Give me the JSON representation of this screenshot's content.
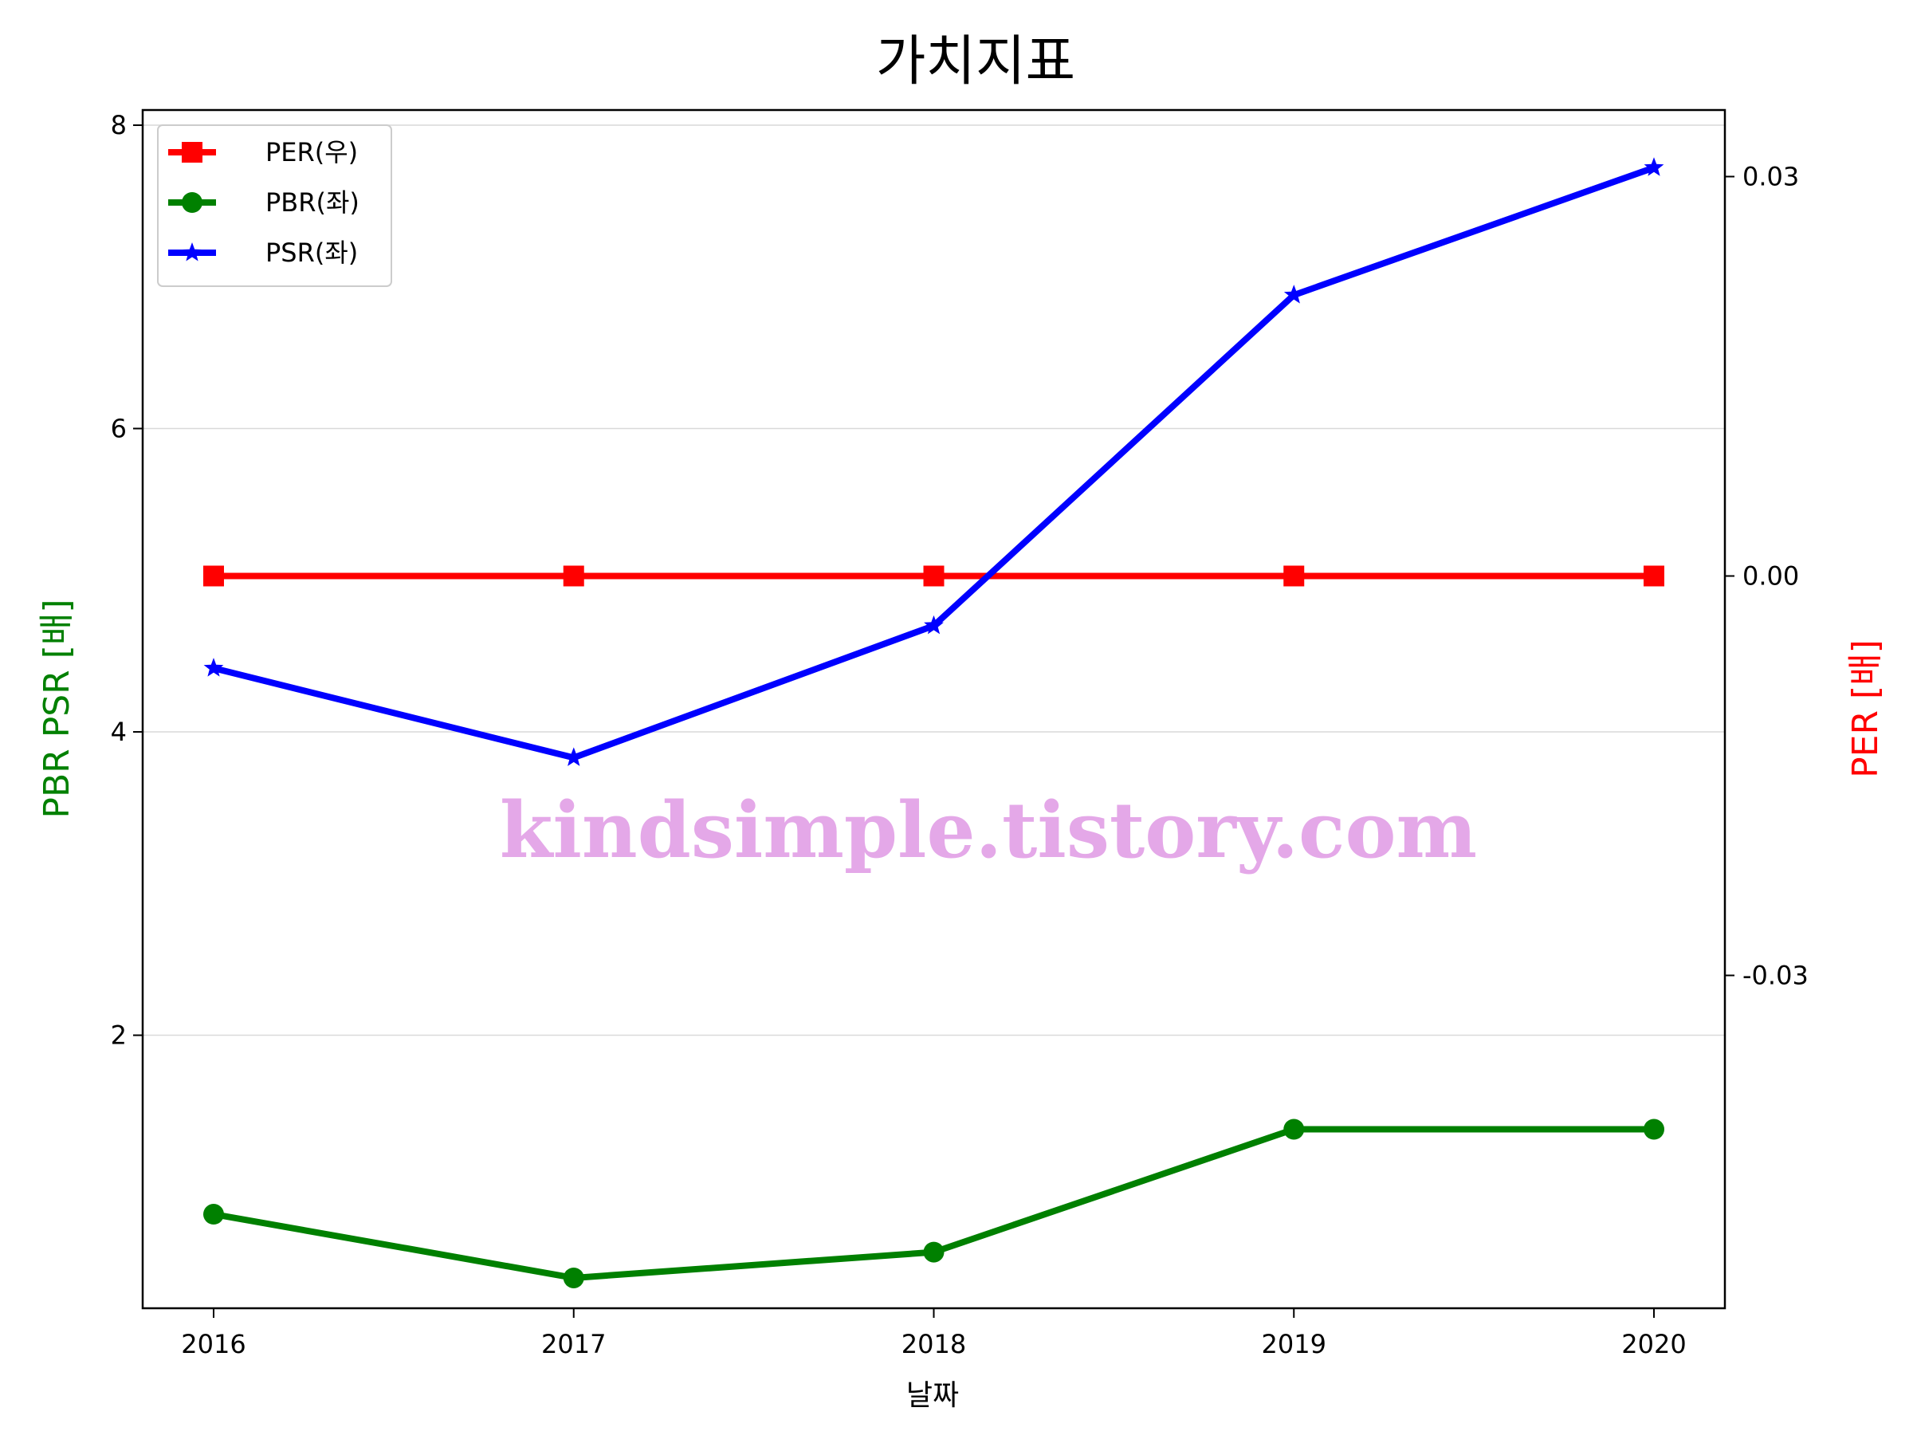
{
  "chart_data": {
    "type": "line",
    "title": "가치지표",
    "xlabel": "날짜",
    "ylabel_left": "PBR PSR [배]",
    "ylabel_right": "PER [배]",
    "categories": [
      "2016",
      "2017",
      "2018",
      "2019",
      "2020"
    ],
    "left_axis": {
      "ylim": [
        0.2,
        8.1
      ],
      "ticks": [
        "2",
        "4",
        "6",
        "8"
      ],
      "color": "#008000"
    },
    "right_axis": {
      "ylim": [
        -0.055,
        0.035
      ],
      "ticks": [
        "-0.03",
        "0.00",
        "0.03"
      ],
      "color": "#ff0000"
    },
    "grid": true,
    "legend_position": "upper-left",
    "watermark": "kindsimple.tistory.com",
    "series": [
      {
        "name": "PER(우)",
        "axis": "right",
        "color": "#ff0000",
        "marker": "square",
        "values": [
          0,
          0,
          0,
          0,
          0
        ]
      },
      {
        "name": "PBR(좌)",
        "axis": "left",
        "color": "#008000",
        "marker": "circle",
        "values": [
          0.82,
          0.4,
          0.57,
          1.38,
          1.38
        ]
      },
      {
        "name": "PSR(좌)",
        "axis": "left",
        "color": "#0000ff",
        "marker": "star",
        "values": [
          4.42,
          3.83,
          4.7,
          6.88,
          7.72
        ]
      }
    ]
  }
}
